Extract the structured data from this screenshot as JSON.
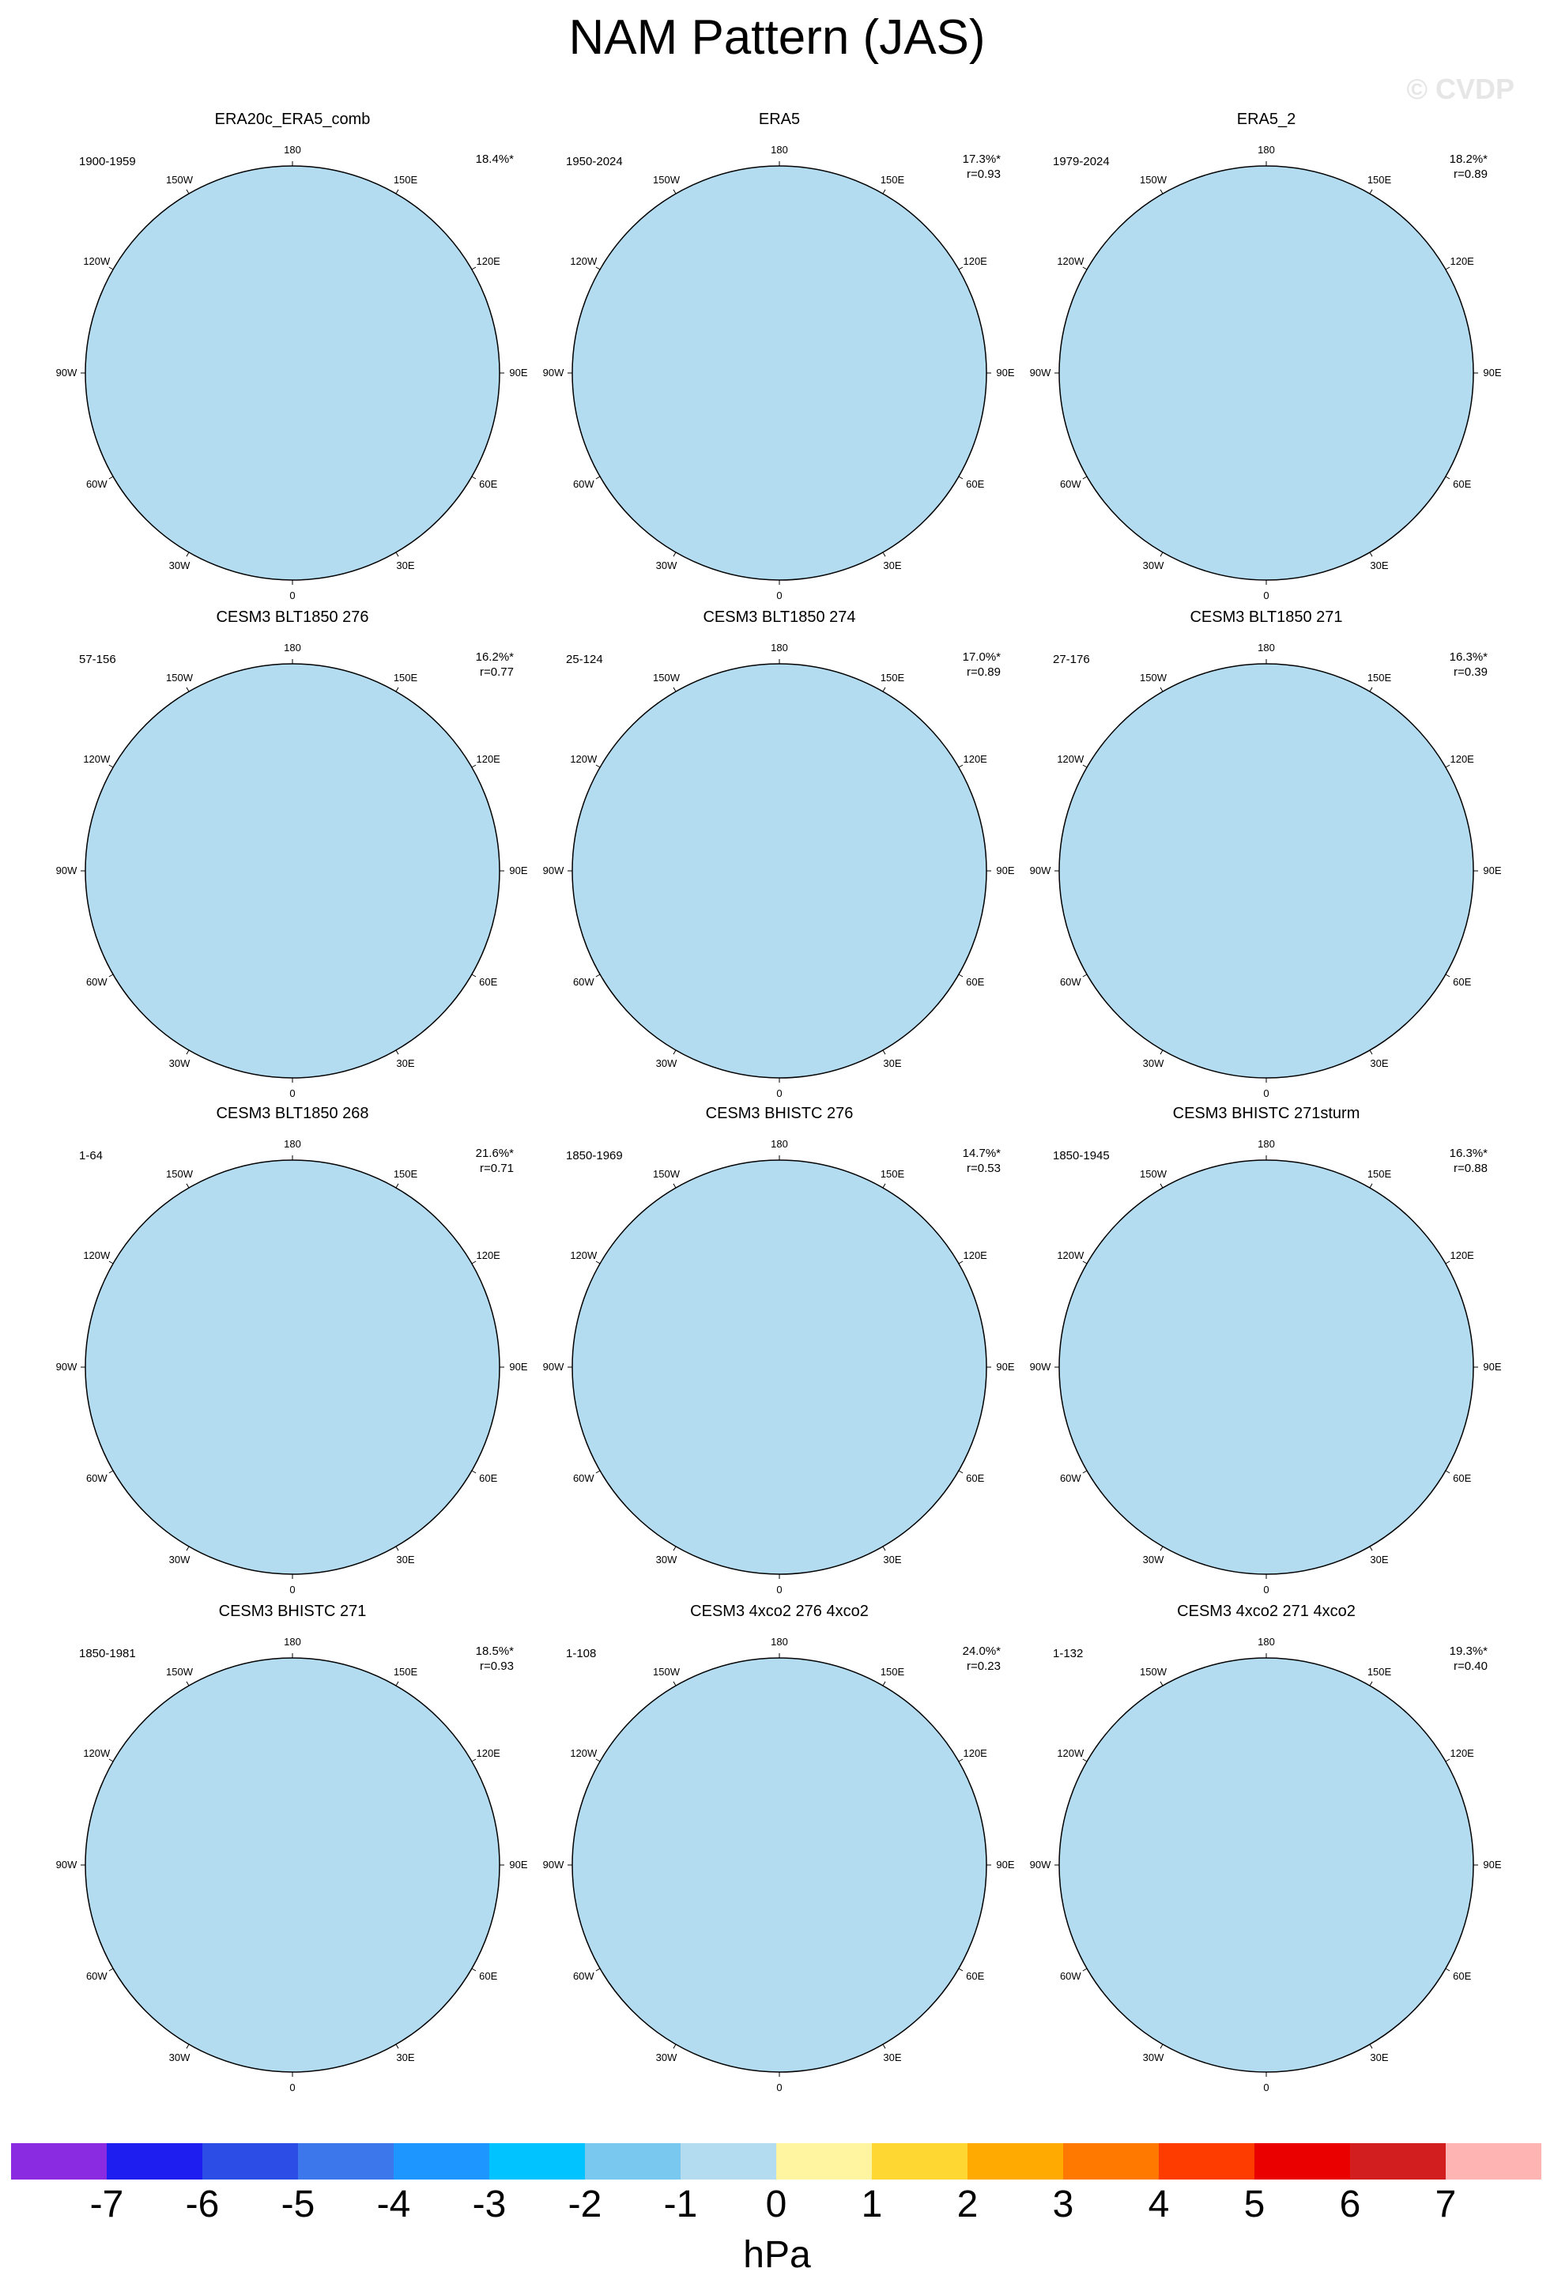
{
  "title": "NAM Pattern (JAS)",
  "watermark": "© CVDP",
  "panels": [
    {
      "title": "ERA20c_ERA5_comb",
      "period": "1900-1959",
      "pct": "18.4%*",
      "r": ""
    },
    {
      "title": "ERA5",
      "period": "1950-2024",
      "pct": "17.3%*",
      "r": "r=0.93"
    },
    {
      "title": "ERA5_2",
      "period": "1979-2024",
      "pct": "18.2%*",
      "r": "r=0.89"
    },
    {
      "title": "CESM3 BLT1850 276",
      "period": "57-156",
      "pct": "16.2%*",
      "r": "r=0.77"
    },
    {
      "title": "CESM3 BLT1850 274",
      "period": "25-124",
      "pct": "17.0%*",
      "r": "r=0.89"
    },
    {
      "title": "CESM3 BLT1850 271",
      "period": "27-176",
      "pct": "16.3%*",
      "r": "r=0.39"
    },
    {
      "title": "CESM3 BLT1850 268",
      "period": "1-64",
      "pct": "21.6%*",
      "r": "r=0.71"
    },
    {
      "title": "CESM3 BHISTC 276",
      "period": "1850-1969",
      "pct": "14.7%*",
      "r": "r=0.53"
    },
    {
      "title": "CESM3 BHISTC 271sturm",
      "period": "1850-1945",
      "pct": "16.3%*",
      "r": "r=0.88"
    },
    {
      "title": "CESM3 BHISTC 271",
      "period": "1850-1981",
      "pct": "18.5%*",
      "r": "r=0.93"
    },
    {
      "title": "CESM3 4xco2 276 4xco2",
      "period": "1-108",
      "pct": "24.0%*",
      "r": "r=0.23"
    },
    {
      "title": "CESM3 4xco2 271 4xco2",
      "period": "1-132",
      "pct": "19.3%*",
      "r": "r=0.40"
    }
  ],
  "longitude_labels": {
    "top": "180",
    "bottom": "0",
    "left": "90W",
    "right": "90E",
    "upper_left_1": "150W",
    "upper_left_2": "120W",
    "upper_right_1": "150E",
    "upper_right_2": "120E",
    "lower_left_1": "60W",
    "lower_left_2": "30W",
    "lower_right_1": "60E",
    "lower_right_2": "30E"
  },
  "colorbar": {
    "colors": [
      "#8a2be2",
      "#1e1ef0",
      "#2d4ee6",
      "#3c78eb",
      "#1e96ff",
      "#00c3ff",
      "#78c8f0",
      "#b4dcf0",
      "#fff5a0",
      "#ffd732",
      "#ffaa00",
      "#ff7800",
      "#ff3c00",
      "#eb0000",
      "#d21e1e",
      "#ffb4b4"
    ],
    "ticks": [
      "-7",
      "-6",
      "-5",
      "-4",
      "-3",
      "-2",
      "-1",
      "0",
      "1",
      "2",
      "3",
      "4",
      "5",
      "6",
      "7"
    ],
    "units": "hPa"
  }
}
